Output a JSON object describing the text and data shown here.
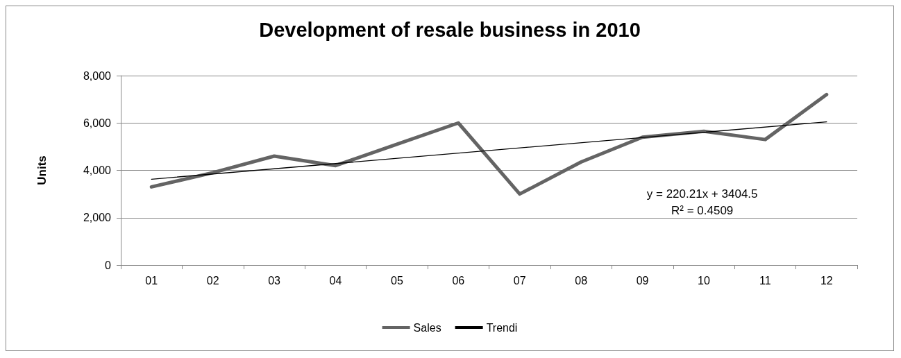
{
  "chart_data": {
    "type": "line",
    "title": "Development of resale business in 2010",
    "ylabel": "Units",
    "categories": [
      "01",
      "02",
      "03",
      "04",
      "05",
      "06",
      "07",
      "08",
      "09",
      "10",
      "11",
      "12"
    ],
    "series": [
      {
        "name": "Sales",
        "color": "#646464",
        "values": [
          3300,
          3900,
          4600,
          4200,
          5100,
          6000,
          3000,
          4350,
          5400,
          5650,
          5300,
          7200
        ]
      },
      {
        "name": "Trendi",
        "type": "line",
        "color": "#000000",
        "x": [
          "01",
          "12"
        ],
        "values": [
          3625,
          6047
        ]
      }
    ],
    "ylim": [
      0,
      8000
    ],
    "yticks": [
      0,
      {
        "value": 2000,
        "label": "2,000"
      },
      {
        "value": 4000,
        "label": "4,000"
      },
      {
        "value": 6000,
        "label": "6,000"
      },
      {
        "value": 8000,
        "label": "8,000"
      }
    ],
    "grid": "y",
    "legend": "bottom",
    "marker": "none",
    "line_style": "solid",
    "annotations": [
      "y = 220.21x + 3404.5",
      "R² = 0.4509"
    ]
  }
}
